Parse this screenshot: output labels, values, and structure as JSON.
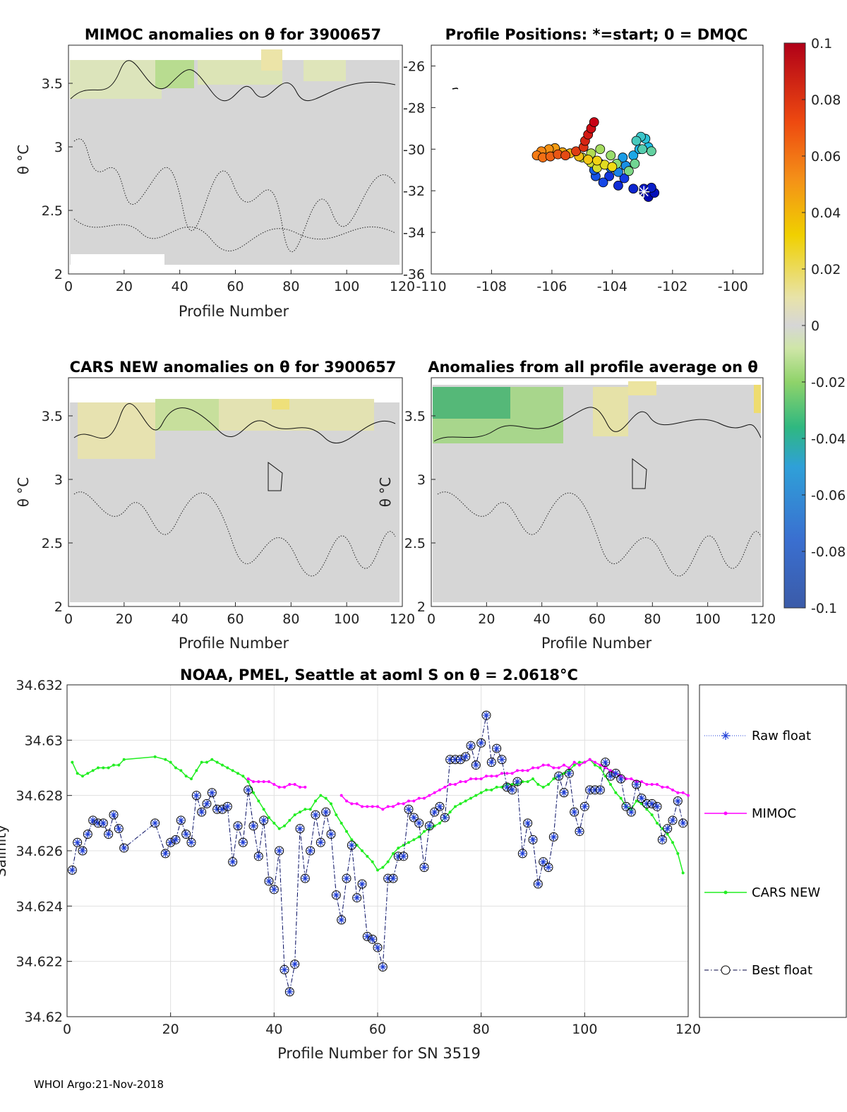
{
  "footer": "WHOI Argo:21-Nov-2018",
  "colors": {
    "raw": "#1f3fd8",
    "mimoc": "#ff00ff",
    "cars": "#22ee22",
    "best": "#000040",
    "grid": "#e0e0e0",
    "field": "#d6d6d6"
  },
  "chart_data": [
    {
      "id": "mimoc_anom",
      "type": "heatmap",
      "title": "MIMOC anomalies on θ  for 3900657",
      "xlabel": "Profile Number",
      "ylabel": "θ °C",
      "xlim": [
        0,
        120
      ],
      "ylim": [
        2,
        3.8
      ],
      "xticks": [
        "0",
        "20",
        "40",
        "60",
        "80",
        "100",
        "120"
      ],
      "yticks": [
        "2",
        "2.5",
        "3",
        "3.5"
      ],
      "color_range": [
        -0.1,
        0.1
      ]
    },
    {
      "id": "positions",
      "type": "scatter",
      "title": "Profile Positions: *=start; 0 = DMQC",
      "xlim": [
        -110,
        -99
      ],
      "ylim": [
        -36,
        -25
      ],
      "xticks": [
        "-110",
        "-108",
        "-106",
        "-104",
        "-102",
        "-100"
      ],
      "yticks": [
        "-26",
        "-28",
        "-30",
        "-32",
        "-34",
        "-36"
      ],
      "start": [
        -102.95,
        -32.05
      ],
      "coast_fragment": [
        -109.3,
        -27.1
      ],
      "track": [
        [
          -102.95,
          -32.05
        ],
        [
          -102.8,
          -32.3
        ],
        [
          -102.6,
          -32.1
        ],
        [
          -102.95,
          -31.9
        ],
        [
          -102.7,
          -31.85
        ],
        [
          -103.3,
          -31.9
        ],
        [
          -103.8,
          -31.75
        ],
        [
          -104.1,
          -31.3
        ],
        [
          -103.6,
          -31.4
        ],
        [
          -104.3,
          -31.6
        ],
        [
          -104.55,
          -31.3
        ],
        [
          -104.6,
          -31.0
        ],
        [
          -104.4,
          -30.7
        ],
        [
          -104.05,
          -30.9
        ],
        [
          -103.8,
          -31.1
        ],
        [
          -103.55,
          -30.8
        ],
        [
          -103.65,
          -30.4
        ],
        [
          -103.3,
          -30.3
        ],
        [
          -103.1,
          -30.0
        ],
        [
          -102.8,
          -29.9
        ],
        [
          -102.9,
          -29.5
        ],
        [
          -103.05,
          -29.4
        ],
        [
          -103.2,
          -29.6
        ],
        [
          -103.0,
          -30.0
        ],
        [
          -102.7,
          -30.1
        ],
        [
          -103.25,
          -30.7
        ],
        [
          -103.45,
          -31.05
        ],
        [
          -103.85,
          -30.7
        ],
        [
          -104.05,
          -30.3
        ],
        [
          -104.4,
          -30.0
        ],
        [
          -104.7,
          -30.2
        ],
        [
          -105.0,
          -30.4
        ],
        [
          -104.7,
          -30.65
        ],
        [
          -104.5,
          -30.9
        ],
        [
          -104.25,
          -30.75
        ],
        [
          -104.0,
          -30.85
        ],
        [
          -104.5,
          -30.55
        ],
        [
          -104.8,
          -30.5
        ],
        [
          -105.1,
          -30.35
        ],
        [
          -105.4,
          -30.2
        ],
        [
          -105.65,
          -30.15
        ],
        [
          -105.9,
          -29.95
        ],
        [
          -106.1,
          -30.0
        ],
        [
          -106.35,
          -30.1
        ],
        [
          -106.5,
          -30.3
        ],
        [
          -106.3,
          -30.4
        ],
        [
          -106.05,
          -30.35
        ],
        [
          -105.8,
          -30.25
        ],
        [
          -105.55,
          -30.3
        ],
        [
          -105.2,
          -30.1
        ],
        [
          -104.95,
          -29.9
        ],
        [
          -104.9,
          -29.6
        ],
        [
          -104.8,
          -29.3
        ],
        [
          -104.7,
          -29.0
        ],
        [
          -104.6,
          -28.7
        ]
      ]
    },
    {
      "id": "cars_anom",
      "type": "heatmap",
      "title": "CARS NEW anomalies on θ for 3900657",
      "xlabel": "Profile Number",
      "ylabel": "θ °C",
      "xlim": [
        0,
        120
      ],
      "ylim": [
        2,
        3.8
      ],
      "xticks": [
        "0",
        "20",
        "40",
        "60",
        "80",
        "100",
        "120"
      ],
      "yticks": [
        "2",
        "2.5",
        "3",
        "3.5"
      ],
      "color_range": [
        -0.1,
        0.1
      ]
    },
    {
      "id": "avg_anom",
      "type": "heatmap",
      "title": "Anomalies from all profile average on θ",
      "xlabel": "Profile Number",
      "ylabel": "θ °C",
      "xlim": [
        0,
        120
      ],
      "ylim": [
        2,
        3.8
      ],
      "xticks": [
        "0",
        "20",
        "40",
        "60",
        "80",
        "100",
        "120"
      ],
      "yticks": [
        "2",
        "2.5",
        "3",
        "3.5"
      ],
      "color_range": [
        -0.1,
        0.1
      ]
    },
    {
      "id": "colorbar",
      "type": "heatmap",
      "range": [
        -0.1,
        0.1
      ],
      "ticks": [
        "0.1",
        "0.08",
        "0.06",
        "0.04",
        "0.02",
        "0",
        "-0.02",
        "-0.04",
        "-0.06",
        "-0.08",
        "-0.1"
      ]
    },
    {
      "id": "salinity",
      "type": "line",
      "title": "NOAA, PMEL, Seattle at aoml S on θ = 2.0618°C",
      "xlabel": "Profile Number for SN 3519",
      "ylabel": "Salinity",
      "xlim": [
        0,
        120
      ],
      "ylim": [
        34.62,
        34.632
      ],
      "xticks": [
        "0",
        "20",
        "40",
        "60",
        "80",
        "100",
        "120"
      ],
      "yticks": [
        "34.62",
        "34.622",
        "34.624",
        "34.626",
        "34.628",
        "34.63",
        "34.632"
      ],
      "legend": [
        "Raw float",
        "MIMOC",
        "CARS NEW",
        "Best float"
      ],
      "series": [
        {
          "name": "Best float",
          "x": [
            1,
            2,
            3,
            4,
            5,
            6,
            7,
            8,
            9,
            10,
            11,
            17,
            19,
            20,
            21,
            22,
            23,
            24,
            25,
            26,
            27,
            28,
            29,
            30,
            31,
            32,
            33,
            34,
            35,
            36,
            37,
            38,
            39,
            40,
            41,
            42,
            43,
            44,
            45,
            46,
            47,
            48,
            49,
            50,
            51,
            52,
            53,
            54,
            55,
            56,
            57,
            58,
            59,
            60,
            61,
            62,
            63,
            64,
            65,
            66,
            67,
            68,
            69,
            70,
            71,
            72,
            73,
            74,
            75,
            76,
            77,
            78,
            79,
            80,
            81,
            82,
            83,
            84,
            85,
            86,
            87,
            88,
            89,
            90,
            91,
            92,
            93,
            94,
            95,
            96,
            97,
            98,
            99,
            100,
            101,
            102,
            103,
            104,
            105,
            106,
            107,
            108,
            109,
            110,
            111,
            112,
            113,
            114,
            115,
            116,
            117,
            118,
            119
          ],
          "values": [
            34.6253,
            34.6263,
            34.626,
            34.6266,
            34.6271,
            34.627,
            34.627,
            34.6266,
            34.6273,
            34.6268,
            34.6261,
            34.627,
            34.6259,
            34.6263,
            34.6264,
            34.6271,
            34.6266,
            34.6263,
            34.628,
            34.6274,
            34.6277,
            34.6281,
            34.6275,
            34.6275,
            34.6276,
            34.6256,
            34.6269,
            34.6263,
            34.6282,
            34.6269,
            34.6258,
            34.6271,
            34.6249,
            34.6246,
            34.626,
            34.6217,
            34.6209,
            34.6219,
            34.6268,
            34.625,
            34.626,
            34.6273,
            34.6263,
            34.6274,
            34.6266,
            34.6244,
            34.6235,
            34.625,
            34.6262,
            34.6243,
            34.6248,
            34.6229,
            34.6228,
            34.6225,
            34.6218,
            34.625,
            34.625,
            34.6258,
            34.6258,
            34.6275,
            34.6272,
            34.627,
            34.6254,
            34.6269,
            34.6274,
            34.6276,
            34.6272,
            34.6293,
            34.6293,
            34.6293,
            34.6294,
            34.6298,
            34.6291,
            34.6299,
            34.6309,
            34.6292,
            34.6297,
            34.6293,
            34.6283,
            34.6282,
            34.6285,
            34.6259,
            34.627,
            34.6264,
            34.6248,
            34.6256,
            34.6254,
            34.6265,
            34.6287,
            34.6281,
            34.6288,
            34.6274,
            34.6267,
            34.6276,
            34.6282,
            34.6282,
            34.6282,
            34.6292,
            34.6287,
            34.6288,
            34.6286,
            34.6276,
            34.6274,
            34.6284,
            34.6279,
            34.6277,
            34.6277,
            34.6276,
            34.6264,
            34.6268,
            34.6271,
            34.6278,
            34.627
          ]
        },
        {
          "name": "MIMOC",
          "x": [
            35,
            36,
            37,
            38,
            39,
            40,
            41,
            42,
            43,
            44,
            45,
            46,
            53,
            54,
            55,
            56,
            57,
            58,
            59,
            60,
            61,
            62,
            63,
            64,
            65,
            66,
            67,
            68,
            69,
            70,
            71,
            72,
            73,
            74,
            75,
            76,
            77,
            78,
            79,
            80,
            81,
            82,
            83,
            84,
            85,
            86,
            87,
            88,
            89,
            90,
            91,
            92,
            93,
            94,
            95,
            96,
            97,
            98,
            99,
            100,
            101,
            102,
            103,
            104,
            105,
            106,
            107,
            108,
            109,
            110,
            111,
            112,
            113,
            114,
            115,
            116,
            117,
            118,
            119,
            120
          ],
          "values": [
            34.6286,
            34.6285,
            34.6285,
            34.6285,
            34.6285,
            34.6284,
            34.6283,
            34.6283,
            34.6284,
            34.6284,
            34.6283,
            34.6283,
            34.628,
            34.6278,
            34.6277,
            34.6277,
            34.6276,
            34.6276,
            34.6276,
            34.6276,
            34.6275,
            34.6276,
            34.6276,
            34.6277,
            34.6277,
            34.6278,
            34.6278,
            34.6279,
            34.6279,
            34.628,
            34.6281,
            34.6282,
            34.6283,
            34.6284,
            34.6284,
            34.6285,
            34.6285,
            34.6286,
            34.6286,
            34.6286,
            34.6287,
            34.6287,
            34.6287,
            34.6288,
            34.6288,
            34.6288,
            34.6289,
            34.6289,
            34.6289,
            34.629,
            34.629,
            34.6291,
            34.6291,
            34.629,
            34.629,
            34.6291,
            34.629,
            34.6292,
            34.6291,
            34.6292,
            34.6293,
            34.6292,
            34.6291,
            34.629,
            34.6289,
            34.6288,
            34.6287,
            34.6286,
            34.6286,
            34.6285,
            34.6285,
            34.6284,
            34.6284,
            34.6284,
            34.6283,
            34.6283,
            34.6282,
            34.6281,
            34.6281,
            34.628
          ]
        },
        {
          "name": "CARS NEW",
          "x": [
            1,
            2,
            3,
            4,
            5,
            6,
            7,
            8,
            9,
            10,
            11,
            17,
            19,
            20,
            21,
            22,
            23,
            24,
            25,
            26,
            27,
            28,
            29,
            30,
            31,
            32,
            33,
            34,
            35,
            36,
            37,
            38,
            39,
            40,
            41,
            42,
            43,
            44,
            45,
            46,
            47,
            48,
            49,
            50,
            51,
            52,
            53,
            54,
            55,
            56,
            57,
            58,
            59,
            60,
            61,
            62,
            63,
            64,
            65,
            66,
            67,
            68,
            69,
            70,
            71,
            72,
            73,
            74,
            75,
            76,
            77,
            78,
            79,
            80,
            81,
            82,
            83,
            84,
            85,
            86,
            87,
            88,
            89,
            90,
            91,
            92,
            93,
            94,
            95,
            96,
            97,
            98,
            99,
            100,
            101,
            102,
            103,
            104,
            105,
            106,
            107,
            108,
            109,
            110,
            111,
            112,
            113,
            114,
            115,
            116,
            117,
            118,
            119
          ],
          "values": [
            34.6292,
            34.6288,
            34.6287,
            34.6288,
            34.6289,
            34.629,
            34.629,
            34.629,
            34.6291,
            34.6291,
            34.6293,
            34.6294,
            34.6293,
            34.6292,
            34.629,
            34.6289,
            34.6287,
            34.6286,
            34.6289,
            34.6292,
            34.6292,
            34.6293,
            34.6292,
            34.6291,
            34.629,
            34.6289,
            34.6288,
            34.6287,
            34.6285,
            34.6281,
            34.6278,
            34.6275,
            34.6272,
            34.627,
            34.6268,
            34.6269,
            34.6271,
            34.6273,
            34.6274,
            34.6275,
            34.6275,
            34.6278,
            34.628,
            34.6279,
            34.6277,
            34.6273,
            34.627,
            34.6267,
            34.6264,
            34.6262,
            34.626,
            34.6258,
            34.6256,
            34.6253,
            34.6254,
            34.6256,
            34.6259,
            34.6261,
            34.6262,
            34.6263,
            34.6264,
            34.6265,
            34.6267,
            34.6268,
            34.6269,
            34.627,
            34.6272,
            34.6274,
            34.6276,
            34.6277,
            34.6278,
            34.6279,
            34.628,
            34.6281,
            34.6282,
            34.6282,
            34.6283,
            34.6283,
            34.6284,
            34.6284,
            34.6284,
            34.6285,
            34.6285,
            34.6286,
            34.6284,
            34.6283,
            34.6284,
            34.6286,
            34.6287,
            34.6288,
            34.6289,
            34.6291,
            34.6292,
            34.6292,
            34.6293,
            34.6291,
            34.629,
            34.6287,
            34.6284,
            34.6281,
            34.6279,
            34.6276,
            34.6275,
            34.6278,
            34.6277,
            34.6275,
            34.6273,
            34.627,
            34.6268,
            34.6266,
            34.6263,
            34.6259,
            34.6252
          ]
        }
      ]
    }
  ]
}
